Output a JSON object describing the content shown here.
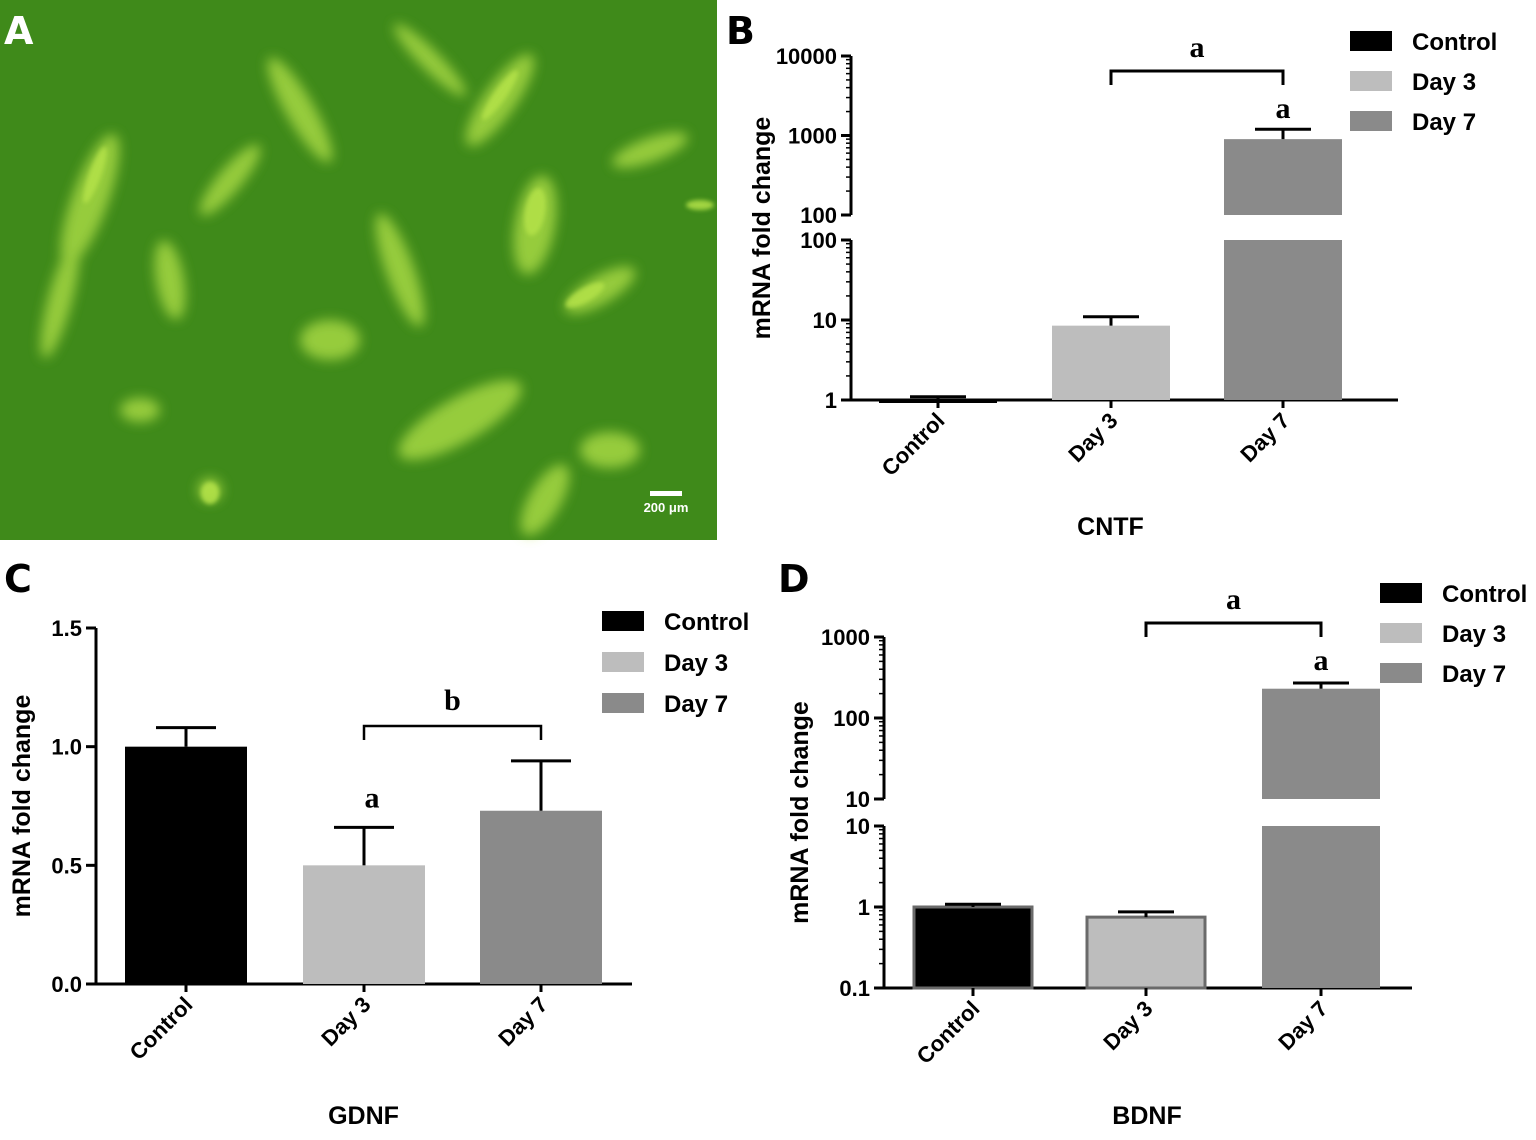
{
  "panel_letters": {
    "a": "A",
    "b": "B",
    "c": "C",
    "d": "D"
  },
  "micrograph": {
    "scale_label": "200 μm",
    "colors": {
      "background": "#3f8a1a",
      "cells": "#b4e24a"
    }
  },
  "legend": [
    {
      "label": "Control",
      "color": "#000000"
    },
    {
      "label": "Day 3",
      "color": "#bdbdbd"
    },
    {
      "label": "Day 7",
      "color": "#8a8a8a"
    }
  ],
  "chart_data": [
    {
      "panel": "B",
      "type": "bar",
      "title": "CNTF",
      "ylabel": "mRNA fold change",
      "yscale": "log (broken axis)",
      "categories": [
        "Control",
        "Day 3",
        "Day 7"
      ],
      "values": [
        1.0,
        8.5,
        900
      ],
      "errors": [
        0.1,
        2.5,
        300
      ],
      "lower_ticks": [
        "1",
        "10",
        "100"
      ],
      "upper_ticks": [
        "100",
        "1000",
        "10000"
      ],
      "annotations": [
        {
          "text": "a",
          "target": "Day 7"
        },
        {
          "text": "a",
          "bracket": [
            "Day 3",
            "Day 7"
          ]
        }
      ]
    },
    {
      "panel": "C",
      "type": "bar",
      "title": "GDNF",
      "ylabel": "mRNA fold change",
      "yscale": "linear",
      "ylim": [
        0,
        1.5
      ],
      "categories": [
        "Control",
        "Day 3",
        "Day 7"
      ],
      "values": [
        1.0,
        0.5,
        0.73
      ],
      "errors": [
        0.08,
        0.16,
        0.21
      ],
      "ticks": [
        "0.0",
        "0.5",
        "1.0",
        "1.5"
      ],
      "annotations": [
        {
          "text": "a",
          "target": "Day 3"
        },
        {
          "text": "b",
          "bracket": [
            "Day 3",
            "Day 7"
          ]
        }
      ]
    },
    {
      "panel": "D",
      "type": "bar",
      "title": "BDNF",
      "ylabel": "mRNA fold change",
      "yscale": "log (broken axis)",
      "categories": [
        "Control",
        "Day 3",
        "Day 7"
      ],
      "values": [
        1.0,
        0.75,
        230
      ],
      "errors": [
        0.08,
        0.12,
        40
      ],
      "lower_ticks": [
        "0.1",
        "1",
        "10"
      ],
      "upper_ticks": [
        "10",
        "100",
        "1000"
      ],
      "annotations": [
        {
          "text": "a",
          "target": "Day 7"
        },
        {
          "text": "a",
          "bracket": [
            "Day 3",
            "Day 7"
          ]
        }
      ]
    }
  ]
}
